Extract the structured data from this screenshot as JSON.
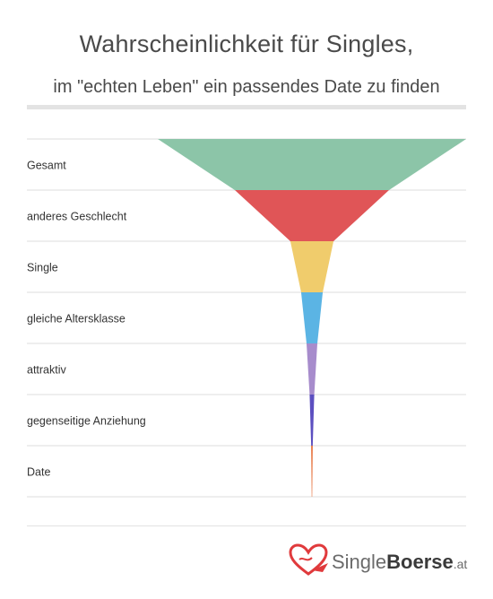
{
  "header": {
    "title": "Wahrscheinlichkeit für Singles,",
    "subtitle": "im \"echten Leben\" ein passendes Date zu finden"
  },
  "logo": {
    "text_light": "Single",
    "text_bold": "Boerse",
    "suffix": ".at"
  },
  "colors": {
    "Gesamt": "#8cc5a8",
    "anderes Geschlecht": "#e05557",
    "Single": "#f0cc6c",
    "gleiche Altersklasse": "#5bb4e4",
    "attraktiv": "#a78ccc",
    "gegenseitige Anziehung": "#5c4fc0",
    "Date": "#e66b33",
    "logo_heart": "#e03a3c"
  },
  "chart_data": {
    "type": "funnel",
    "title": "Wahrscheinlichkeit für Singles,",
    "subtitle": "im \"echten Leben\" ein passendes Date zu finden",
    "categories": [
      "Gesamt",
      "anderes Geschlecht",
      "Single",
      "gleiche Altersklasse",
      "attraktiv",
      "gegenseitige Anziehung",
      "Date"
    ],
    "values": [
      100,
      50,
      14,
      7,
      3.5,
      1.5,
      0.5
    ],
    "grid": true
  }
}
